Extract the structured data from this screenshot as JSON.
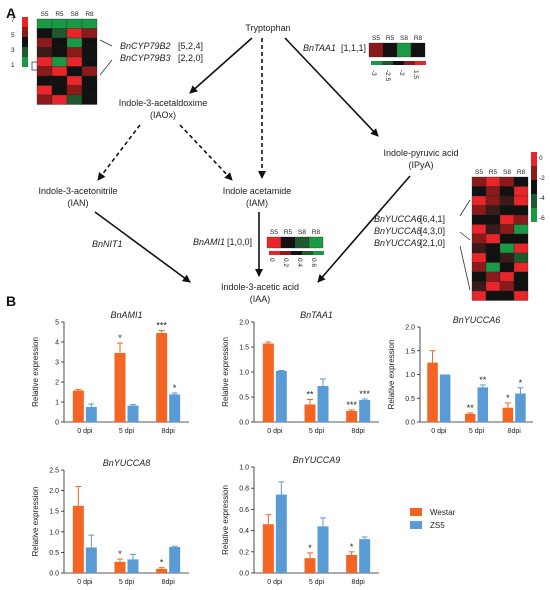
{
  "panel_labels": {
    "a": "A",
    "b": "B"
  },
  "pathway": {
    "tryptophan": "Tryptophan",
    "iaox": [
      "Indole-3-acetaldoxime",
      "(IAOx)"
    ],
    "ian": [
      "Indole-3-acetonitrile",
      "(IAN)"
    ],
    "iam": [
      "Indole acetamide",
      "(IAM)"
    ],
    "ipya": [
      "Indole-pyruvic acid",
      "(IPyA)"
    ],
    "iaa": [
      "Indole-3-acetic acid",
      "(IAA)"
    ],
    "genes": {
      "cyp79b2": {
        "name": "BnCYP79B2",
        "counts": "[5,2,4]"
      },
      "cyp79b3": {
        "name": "BnCYP79B3",
        "counts": "[2,2,0]"
      },
      "taa1": {
        "name": "BnTAA1",
        "counts": "[1,1,1]"
      },
      "nit1": {
        "name": "BnNIT1",
        "counts": ""
      },
      "ami1": {
        "name": "BnAMI1",
        "counts": "[1,0,0]"
      },
      "yucca6": {
        "name": "BnYUCCA6",
        "counts": "[6,4,1]"
      },
      "yucca8": {
        "name": "BnYUCCA8",
        "counts": "[4,3,0]"
      },
      "yucca9": {
        "name": "BnYUCCA9",
        "counts": "[2,1,0]"
      }
    },
    "heatmap_columns": [
      "S5",
      "R5",
      "S8",
      "R8"
    ],
    "colorbars": {
      "cyp": [
        "7",
        "5",
        "3",
        "1"
      ],
      "taa1": [
        "-3",
        "-2.5",
        "-2",
        "1.5"
      ],
      "ami1": [
        "0",
        "0.2",
        "0.4",
        "0.6"
      ],
      "yucca": [
        "0",
        "-2",
        "-4",
        "-6"
      ]
    }
  },
  "chart_data": [
    {
      "type": "bar",
      "title": "BnAMI1",
      "ylabel": "Relative expression",
      "categories": [
        "0 dpi",
        "5 dpi",
        "8dpi"
      ],
      "ylim": [
        0,
        5
      ],
      "yticks": [
        "0",
        "1",
        "2",
        "3",
        "4",
        "5"
      ],
      "series": [
        {
          "name": "Westar",
          "values": [
            1.57,
            3.45,
            4.45
          ],
          "errors": [
            0.05,
            0.5,
            0.12
          ]
        },
        {
          "name": "ZS5",
          "values": [
            0.75,
            0.82,
            1.38
          ],
          "errors": [
            0.15,
            0.05,
            0.07
          ]
        }
      ],
      "annotations": [
        [
          "",
          "*",
          "***"
        ],
        [
          "",
          "",
          "*"
        ]
      ]
    },
    {
      "type": "bar",
      "title": "BnTAA1",
      "ylabel": "Relative expression",
      "categories": [
        "0 dpi",
        "5 dpi",
        "8dpi"
      ],
      "ylim": [
        0,
        2
      ],
      "yticks": [
        "0.0",
        "0.5",
        "1.0",
        "1.5",
        "2.0"
      ],
      "series": [
        {
          "name": "Westar",
          "values": [
            1.57,
            0.35,
            0.22
          ],
          "errors": [
            0.03,
            0.1,
            0.02
          ]
        },
        {
          "name": "ZS5",
          "values": [
            1.02,
            0.72,
            0.44
          ],
          "errors": [
            0.01,
            0.14,
            0.02
          ]
        }
      ],
      "annotations": [
        [
          "",
          "**",
          "***"
        ],
        [
          "",
          "",
          "***"
        ]
      ]
    },
    {
      "type": "bar",
      "title": "BnYUCCA6",
      "ylabel": "Relative expression",
      "categories": [
        "0 dpi",
        "5 dpi",
        "8dpi"
      ],
      "ylim": [
        0,
        2
      ],
      "yticks": [
        "0.0",
        "0.5",
        "1.0",
        "1.5",
        "2.0"
      ],
      "series": [
        {
          "name": "Westar",
          "values": [
            1.25,
            0.17,
            0.3
          ],
          "errors": [
            0.25,
            0.02,
            0.1
          ]
        },
        {
          "name": "ZS5",
          "values": [
            1.0,
            0.73,
            0.6
          ],
          "errors": [
            0.0,
            0.05,
            0.12
          ]
        }
      ],
      "annotations": [
        [
          "",
          "**",
          "*"
        ],
        [
          "",
          "**",
          "*"
        ]
      ]
    },
    {
      "type": "bar",
      "title": "BnYUCCA8",
      "ylabel": "Relative expression",
      "categories": [
        "0 dpi",
        "5 dpi",
        "8dpi"
      ],
      "ylim": [
        0,
        2.5
      ],
      "yticks": [
        "0.0",
        "0.5",
        "1.0",
        "1.5",
        "2.0",
        "2.5"
      ],
      "series": [
        {
          "name": "Westar",
          "values": [
            1.63,
            0.27,
            0.1
          ],
          "errors": [
            0.47,
            0.07,
            0.03
          ]
        },
        {
          "name": "ZS5",
          "values": [
            0.62,
            0.33,
            0.63
          ],
          "errors": [
            0.3,
            0.12,
            0.02
          ]
        }
      ],
      "annotations": [
        [
          "",
          "*",
          "*"
        ],
        [
          "",
          "",
          ""
        ]
      ]
    },
    {
      "type": "bar",
      "title": "BnYUCCA9",
      "ylabel": "Relative expression",
      "categories": [
        "0 dpi",
        "5 dpi",
        "8dpi"
      ],
      "ylim": [
        0,
        1
      ],
      "yticks": [
        "0.0",
        "0.2",
        "0.4",
        "0.6",
        "0.8",
        "1.0"
      ],
      "series": [
        {
          "name": "Westar",
          "values": [
            0.46,
            0.14,
            0.17
          ],
          "errors": [
            0.09,
            0.05,
            0.03
          ]
        },
        {
          "name": "ZS5",
          "values": [
            0.74,
            0.44,
            0.32
          ],
          "errors": [
            0.12,
            0.08,
            0.02
          ]
        }
      ],
      "annotations": [
        [
          "",
          "*",
          "*"
        ],
        [
          "",
          "",
          ""
        ]
      ]
    }
  ],
  "legend": [
    {
      "name": "Westar",
      "color": "#f26522"
    },
    {
      "name": "ZS5",
      "color": "#5b9bd5"
    }
  ],
  "colors": {
    "westar": "#f26522",
    "zs5": "#5b9bd5",
    "heat_red": "#e8262a",
    "heat_green": "#1a9a45",
    "heat_black": "#111111"
  }
}
